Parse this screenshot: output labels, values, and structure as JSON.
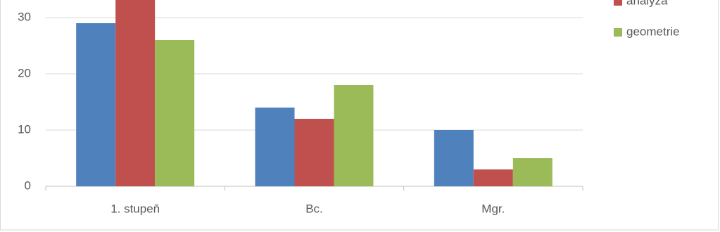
{
  "chart_data": {
    "type": "bar",
    "categories": [
      "1. stupeň",
      "Bc.",
      "Mgr."
    ],
    "series": [
      {
        "color": "#4f81bd",
        "values": [
          29,
          14,
          10
        ]
      },
      {
        "name": "analýza",
        "color": "#c0504d",
        "values": [
          35,
          12,
          3
        ]
      },
      {
        "name": "geometrie",
        "color": "#9bbb59",
        "values": [
          26,
          18,
          5
        ]
      }
    ],
    "ylim": [
      0,
      33
    ],
    "yticks": [
      0,
      10,
      20,
      30
    ],
    "grid": true,
    "legend": "right"
  }
}
